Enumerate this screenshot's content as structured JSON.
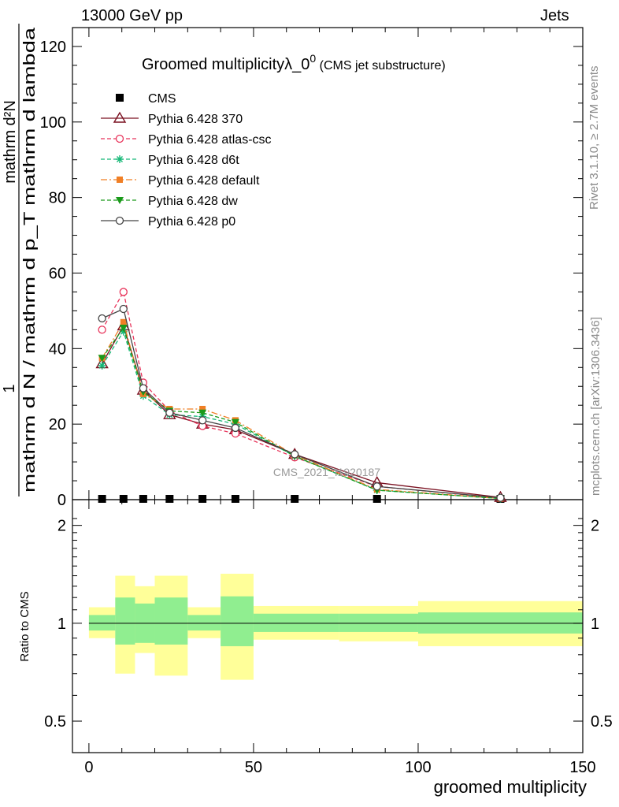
{
  "header": {
    "energy_label": "13000 GeV pp",
    "process_label": "Jets"
  },
  "side_labels": {
    "rivet": "Rivet 3.1.10, ≥ 2.7M events",
    "mcplots": "mcplots.cern.ch [arXiv:1306.3436]"
  },
  "watermark": "CMS_2021_I1920187",
  "chart_data": {
    "type": "line",
    "title": "Groomed multiplicityλ_0",
    "title_superscript": "0",
    "title_suffix": "(CMS jet substructure)",
    "xlabel": "groomed multiplicity",
    "ylabel_numerator": "1",
    "ylabel_denominator": "mathrm d N / mathrm d p_T mathrm d lambda",
    "ylabel_top": "mathrm d²N",
    "ratio_ylabel": "Ratio to CMS",
    "xlim": [
      -5,
      150
    ],
    "ylim": [
      0,
      125
    ],
    "ratio_ylim": [
      0.4,
      2.4
    ],
    "ratio_log": true,
    "x_ticks": [
      "0",
      "50",
      "100",
      "150"
    ],
    "y_ticks": [
      "0",
      "20",
      "40",
      "60",
      "80",
      "100",
      "120"
    ],
    "ratio_ticks": [
      "0.5",
      "1",
      "2"
    ],
    "x": [
      4,
      10.5,
      16.5,
      24.5,
      34.5,
      44.5,
      62.5,
      87.5,
      125
    ],
    "bin_edges": [
      0,
      8,
      14,
      20,
      30,
      40,
      50,
      76,
      100,
      150
    ],
    "series": [
      {
        "name": "CMS",
        "color": "#000000",
        "marker": "square",
        "style": "none",
        "values": [
          0.2,
          0.2,
          0.2,
          0.2,
          0.2,
          0.2,
          0.2,
          0.2,
          0.2
        ]
      },
      {
        "name": "Pythia 6.428 370",
        "color": "#7a1020",
        "marker": "triangle-open",
        "style": "solid",
        "values": [
          36,
          46,
          29,
          22.5,
          20,
          18.5,
          12,
          4.5,
          0.6
        ]
      },
      {
        "name": "Pythia 6.428 atlas-csc",
        "color": "#e8335a",
        "marker": "circle-open",
        "style": "dashed",
        "values": [
          45,
          55,
          31,
          23.5,
          19.5,
          17.5,
          11.2,
          3.5,
          0.4
        ]
      },
      {
        "name": "Pythia 6.428 d6t",
        "color": "#15b877",
        "marker": "star",
        "style": "dashed",
        "values": [
          35.5,
          44.5,
          27.5,
          22.5,
          22,
          20,
          11.5,
          2.5,
          0.3
        ]
      },
      {
        "name": "Pythia 6.428 default",
        "color": "#f07f25",
        "marker": "square-filled",
        "style": "dashdot",
        "values": [
          37.5,
          47,
          28,
          24,
          24,
          21,
          11.8,
          2.7,
          0.3
        ]
      },
      {
        "name": "Pythia 6.428 dw",
        "color": "#1a9a1a",
        "marker": "triangle-down",
        "style": "dashed",
        "values": [
          37.5,
          45.5,
          28.5,
          23.5,
          23,
          20.5,
          11.5,
          2.5,
          0.3
        ]
      },
      {
        "name": "Pythia 6.428 p0",
        "color": "#444444",
        "marker": "circle-open",
        "style": "solid",
        "values": [
          48,
          50.5,
          29.5,
          23,
          21,
          19,
          12,
          3.5,
          0.5
        ]
      }
    ],
    "ratio_bands": {
      "inner_color": "#90ee90",
      "outer_color": "#ffff99",
      "inner_low": [
        0.95,
        0.86,
        0.87,
        0.86,
        0.95,
        0.85,
        0.94,
        0.94,
        0.93
      ],
      "inner_high": [
        1.06,
        1.2,
        1.15,
        1.2,
        1.06,
        1.21,
        1.07,
        1.07,
        1.08
      ],
      "outer_low": [
        0.9,
        0.7,
        0.81,
        0.69,
        0.9,
        0.67,
        0.89,
        0.88,
        0.85
      ],
      "outer_high": [
        1.12,
        1.4,
        1.3,
        1.4,
        1.12,
        1.42,
        1.13,
        1.13,
        1.17
      ]
    }
  }
}
